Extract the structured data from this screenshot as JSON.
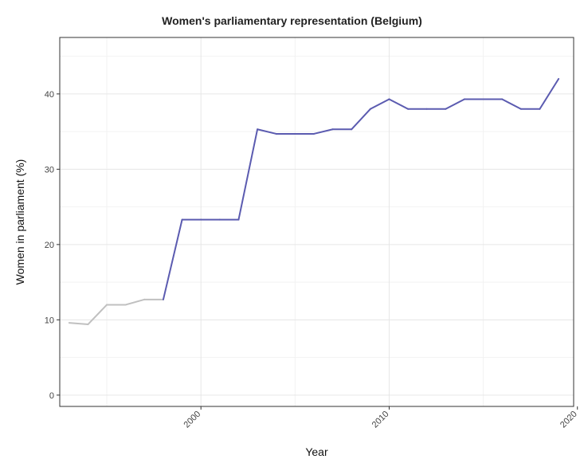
{
  "chart_data": {
    "type": "line",
    "title": "Women's parliamentary representation (Belgium)",
    "xlabel": "Year",
    "ylabel": "Women in parliament (%)",
    "xlim": [
      1992.5,
      2019.8
    ],
    "ylim": [
      -1.5,
      47.5
    ],
    "x_ticks": [
      2000,
      2010,
      2020
    ],
    "y_ticks": [
      0,
      10,
      20,
      30,
      40
    ],
    "grid": true,
    "x_tick_rotation": 45,
    "colors": {
      "early": "#c0c0c0",
      "late": "#5b5bb0"
    },
    "series": [
      {
        "x": [
          1993,
          1994,
          1995,
          1996,
          1997,
          1998,
          1999,
          2000,
          2001,
          2002,
          2003,
          2004,
          2005,
          2006,
          2007,
          2008,
          2009,
          2010,
          2011,
          2012,
          2013,
          2014,
          2015,
          2016,
          2017,
          2018,
          2019
        ],
        "values": [
          9.6,
          9.4,
          12.0,
          12.0,
          12.7,
          12.7,
          23.3,
          23.3,
          23.3,
          23.3,
          35.3,
          34.7,
          34.7,
          34.7,
          35.3,
          35.3,
          38.0,
          39.3,
          38.0,
          38.0,
          38.0,
          39.3,
          39.3,
          39.3,
          38.0,
          38.0,
          42.0
        ],
        "color_change_index": 5
      }
    ]
  }
}
